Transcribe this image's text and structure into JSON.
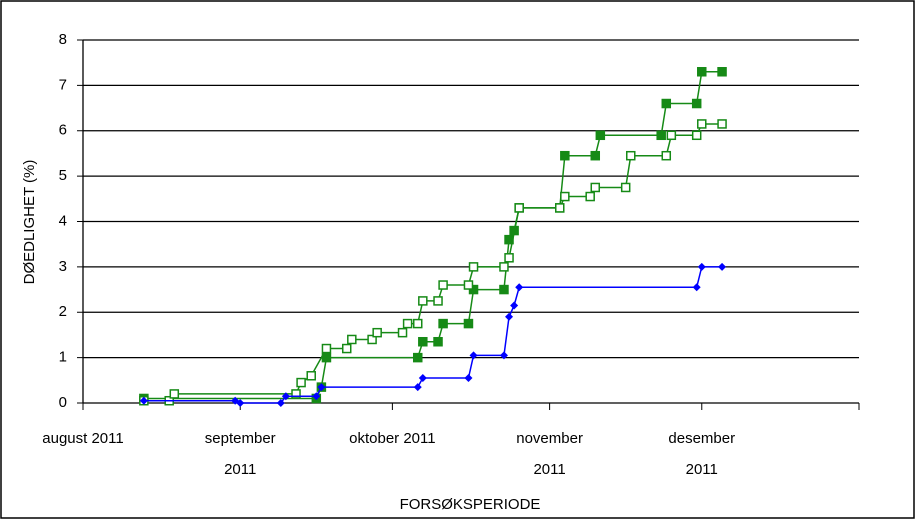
{
  "chart_data": {
    "type": "line",
    "y_label": "DØEDLIGHET (%)",
    "x_label": "FORSØKSPERIODE",
    "xlim": [
      0,
      153
    ],
    "xticks": [
      {
        "value": 0,
        "label": "august 2011"
      },
      {
        "value": 31,
        "label": "september 2011"
      },
      {
        "value": 61,
        "label": "oktober 2011"
      },
      {
        "value": 92,
        "label": "november 2011"
      },
      {
        "value": 122,
        "label": "desember 2011"
      },
      {
        "value": 153,
        "label": null
      }
    ],
    "ylim": [
      0,
      8
    ],
    "yticks": [
      0,
      1,
      2,
      3,
      4,
      5,
      6,
      7,
      8
    ],
    "grid": true,
    "series": [
      {
        "color": "#168a16",
        "marker": "filled-square",
        "x": [
          12,
          46,
          47,
          48,
          66,
          67,
          70,
          71,
          76,
          77,
          83,
          84,
          85,
          86,
          94,
          95,
          101,
          102,
          114,
          115,
          121,
          122,
          126
        ],
        "values": [
          0.1,
          0.1,
          0.35,
          1.0,
          1.0,
          1.35,
          1.35,
          1.75,
          1.75,
          2.5,
          2.5,
          3.6,
          3.8,
          4.3,
          4.3,
          5.45,
          5.45,
          5.9,
          5.9,
          6.6,
          6.6,
          7.3,
          7.3
        ]
      },
      {
        "color": "#168a16",
        "marker": "hollow-square",
        "x": [
          12,
          17,
          18,
          42,
          43,
          45,
          48,
          52,
          53,
          57,
          58,
          63,
          64,
          66,
          67,
          70,
          71,
          76,
          77,
          83,
          84,
          86,
          94,
          95,
          100,
          101,
          107,
          108,
          115,
          116,
          121,
          122,
          126
        ],
        "values": [
          0.05,
          0.05,
          0.2,
          0.2,
          0.45,
          0.6,
          1.2,
          1.2,
          1.4,
          1.4,
          1.55,
          1.55,
          1.75,
          1.75,
          2.25,
          2.25,
          2.6,
          2.6,
          3.0,
          3.0,
          3.2,
          4.3,
          4.3,
          4.55,
          4.55,
          4.75,
          4.75,
          5.45,
          5.45,
          5.9,
          5.9,
          6.15,
          6.15
        ]
      },
      {
        "color": "#0000ff",
        "marker": "diamond",
        "x": [
          12,
          30,
          31,
          39,
          40,
          46,
          47,
          66,
          67,
          76,
          77,
          83,
          84,
          85,
          86,
          121,
          122,
          126
        ],
        "values": [
          0.05,
          0.05,
          0,
          0,
          0.15,
          0.15,
          0.35,
          0.35,
          0.55,
          0.55,
          1.05,
          1.05,
          1.9,
          2.15,
          2.55,
          2.55,
          3.0,
          3.0
        ]
      }
    ]
  }
}
